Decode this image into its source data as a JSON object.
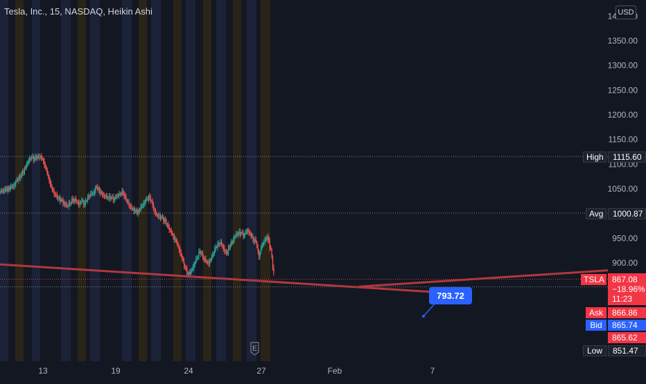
{
  "legend": {
    "title": "Tesla, Inc., 15, NASDAQ, Heikin Ashi"
  },
  "currency": "USD",
  "colors": {
    "background": "#131722",
    "up": "#26a69a",
    "down": "#ef5350",
    "trendline": "#b2383e",
    "callout": "#2962ff",
    "session_premarket": "#1b2238",
    "session_postmarket": "#2a2418"
  },
  "earnings_marker": {
    "label": "E"
  },
  "callout": {
    "label": "793.72"
  },
  "price_tags": {
    "high": {
      "label": "High",
      "value": "1115.60"
    },
    "avg": {
      "label": "Avg",
      "value": "1000.87"
    },
    "symbol": {
      "label": "TSLA",
      "value": "867.08",
      "change": "−18.96%",
      "countdown": "11:23"
    },
    "ask": {
      "label": "Ask",
      "value": "866.86"
    },
    "bid": {
      "label": "Bid",
      "value": "865.74"
    },
    "extra": {
      "value": "865.62"
    },
    "low": {
      "label": "Low",
      "value": "851.47"
    }
  },
  "chart_data": {
    "type": "candlestick",
    "title": "Tesla, Inc., 15, NASDAQ, Heikin Ashi",
    "y_ticks": [
      "1400.00",
      "1350.00",
      "1300.00",
      "1250.00",
      "1200.00",
      "1150.00",
      "1100.00",
      "1050.00",
      "950.00",
      "900.00"
    ],
    "y_tick_values": [
      1400,
      1350,
      1300,
      1250,
      1200,
      1150,
      1100,
      1050,
      950,
      900
    ],
    "x_ticks": [
      "13",
      "19",
      "24",
      "27",
      "Feb",
      "7"
    ],
    "ylim": [
      845,
      1420
    ],
    "reference_levels": {
      "high": 1115.6,
      "avg": 1000.87,
      "last": 867.08,
      "low": 851.47
    },
    "price_path": [
      1045,
      1048,
      1047,
      1052,
      1055,
      1068,
      1075,
      1085,
      1095,
      1108,
      1112,
      1110,
      1113,
      1115,
      1108,
      1090,
      1070,
      1050,
      1038,
      1030,
      1025,
      1020,
      1015,
      1022,
      1030,
      1028,
      1020,
      1025,
      1018,
      1030,
      1038,
      1042,
      1055,
      1048,
      1040,
      1035,
      1032,
      1030,
      1028,
      1035,
      1040,
      1045,
      1030,
      1020,
      1010,
      1005,
      1000,
      1010,
      1020,
      1030,
      1035,
      1020,
      1000,
      995,
      990,
      985,
      975,
      965,
      955,
      945,
      930,
      910,
      890,
      875,
      880,
      895,
      910,
      925,
      915,
      905,
      900,
      910,
      925,
      935,
      940,
      930,
      920,
      935,
      945,
      955,
      960,
      958,
      955,
      965,
      960,
      950,
      945,
      915,
      935,
      945,
      950,
      925,
      880
    ],
    "trendlines": [
      {
        "start": 897,
        "end": 838,
        "note": "descending"
      },
      {
        "start": 852,
        "end": 885,
        "note": "ascending"
      }
    ]
  }
}
